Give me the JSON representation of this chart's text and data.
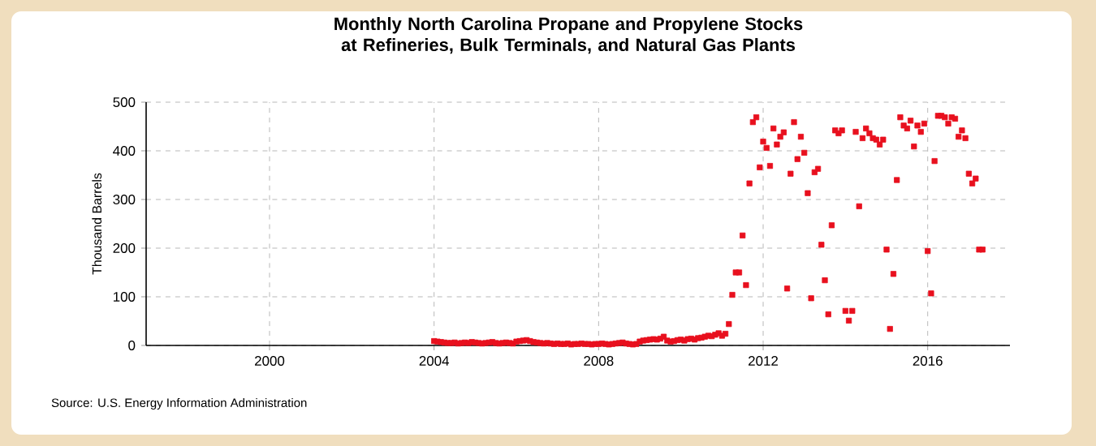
{
  "chart_data": {
    "type": "scatter",
    "title": "Monthly North Carolina Propane and Propylene Stocks at Refineries, Bulk Terminals, and Natural Gas Plants",
    "ylabel": "Thousand Barrels",
    "annotations": [
      "Source: U.S. Energy Information Administration"
    ],
    "x": [
      "2004-01",
      "2004-02",
      "2004-03",
      "2004-04",
      "2004-05",
      "2004-06",
      "2004-07",
      "2004-08",
      "2004-09",
      "2004-10",
      "2004-11",
      "2004-12",
      "2005-01",
      "2005-02",
      "2005-03",
      "2005-04",
      "2005-05",
      "2005-06",
      "2005-07",
      "2005-08",
      "2005-09",
      "2005-10",
      "2005-11",
      "2005-12",
      "2006-01",
      "2006-02",
      "2006-03",
      "2006-04",
      "2006-05",
      "2006-06",
      "2006-07",
      "2006-08",
      "2006-09",
      "2006-10",
      "2006-11",
      "2006-12",
      "2007-01",
      "2007-02",
      "2007-03",
      "2007-04",
      "2007-05",
      "2007-06",
      "2007-07",
      "2007-08",
      "2007-09",
      "2007-10",
      "2007-11",
      "2007-12",
      "2008-01",
      "2008-02",
      "2008-03",
      "2008-04",
      "2008-05",
      "2008-06",
      "2008-07",
      "2008-08",
      "2008-09",
      "2008-10",
      "2008-11",
      "2008-12",
      "2009-01",
      "2009-02",
      "2009-03",
      "2009-04",
      "2009-05",
      "2009-06",
      "2009-07",
      "2009-08",
      "2009-09",
      "2009-10",
      "2009-11",
      "2009-12",
      "2010-01",
      "2010-02",
      "2010-03",
      "2010-04",
      "2010-05",
      "2010-06",
      "2010-07",
      "2010-08",
      "2010-09",
      "2010-10",
      "2010-11",
      "2010-12",
      "2011-01",
      "2011-02",
      "2011-03",
      "2011-04",
      "2011-05",
      "2011-06",
      "2011-07",
      "2011-08",
      "2011-09",
      "2011-10",
      "2011-11",
      "2011-12",
      "2012-01",
      "2012-02",
      "2012-03",
      "2012-04",
      "2012-05",
      "2012-06",
      "2012-07",
      "2012-08",
      "2012-09",
      "2012-10",
      "2012-11",
      "2012-12",
      "2013-01",
      "2013-02",
      "2013-03",
      "2013-04",
      "2013-05",
      "2013-06",
      "2013-07",
      "2013-08",
      "2013-09",
      "2013-10",
      "2013-11",
      "2013-12",
      "2014-01",
      "2014-02",
      "2014-03",
      "2014-04",
      "2014-05",
      "2014-06",
      "2014-07",
      "2014-08",
      "2014-09",
      "2014-10",
      "2014-11",
      "2014-12",
      "2015-01",
      "2015-02",
      "2015-03",
      "2015-04",
      "2015-05",
      "2015-06",
      "2015-07",
      "2015-08",
      "2015-09",
      "2015-10",
      "2015-11",
      "2015-12",
      "2016-01",
      "2016-02",
      "2016-03",
      "2016-04",
      "2016-05",
      "2016-06",
      "2016-07",
      "2016-08",
      "2016-09",
      "2016-10",
      "2016-11",
      "2016-12",
      "2017-01",
      "2017-02",
      "2017-03",
      "2017-04",
      "2017-05"
    ],
    "series": [
      {
        "color": "#e8101e",
        "values": [
          9,
          8,
          7,
          6,
          5,
          5,
          6,
          4,
          5,
          6,
          5,
          7,
          6,
          5,
          4,
          5,
          6,
          7,
          5,
          4,
          5,
          6,
          5,
          4,
          8,
          9,
          10,
          11,
          9,
          7,
          6,
          5,
          4,
          5,
          4,
          3,
          4,
          3,
          3,
          4,
          2,
          3,
          3,
          4,
          3,
          3,
          2,
          3,
          3,
          4,
          3,
          2,
          3,
          4,
          5,
          6,
          4,
          3,
          2,
          3,
          8,
          10,
          11,
          12,
          13,
          12,
          14,
          18,
          10,
          8,
          9,
          11,
          12,
          10,
          13,
          14,
          12,
          15,
          16,
          18,
          20,
          19,
          22,
          25,
          20,
          24,
          44,
          104,
          150,
          150,
          226,
          124,
          333,
          459,
          469,
          366,
          419,
          406,
          369,
          446,
          413,
          429,
          438,
          117,
          353,
          459,
          383,
          429,
          396,
          313,
          97,
          356,
          363,
          207,
          134,
          64,
          247,
          442,
          436,
          442,
          71,
          51,
          71,
          439,
          286,
          426,
          446,
          436,
          426,
          423,
          413,
          423,
          197,
          34,
          147,
          340,
          469,
          452,
          446,
          462,
          409,
          452,
          439,
          456,
          194,
          107,
          379,
          472,
          472,
          469,
          456,
          469,
          466,
          429,
          442,
          426,
          353,
          333,
          343,
          197,
          197
        ]
      }
    ],
    "xlim": [
      "1997-01",
      "2018-01"
    ],
    "xticks": [
      "2000",
      "2004",
      "2008",
      "2012",
      "2016"
    ],
    "ylim": [
      0,
      500
    ],
    "yticks": [
      0,
      100,
      200,
      300,
      400,
      500
    ],
    "grid": true,
    "marker": "square"
  }
}
